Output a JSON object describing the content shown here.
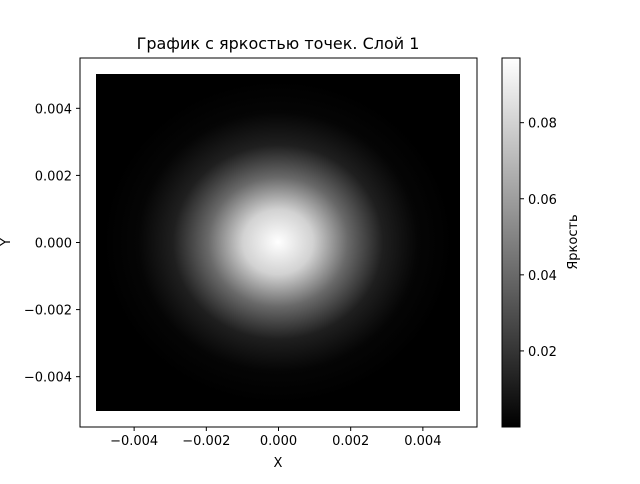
{
  "chart_data": {
    "type": "heatmap",
    "title": "График с яркостью точек. Слой 1",
    "xlabel": "X",
    "ylabel": "Y",
    "xlim": [
      -0.0055,
      0.0055
    ],
    "ylim": [
      -0.0055,
      0.0055
    ],
    "data_extent": {
      "x": [
        -0.005,
        0.005
      ],
      "y": [
        -0.005,
        0.005
      ]
    },
    "xticks": [
      -0.004,
      -0.002,
      0.0,
      0.002,
      0.004
    ],
    "xtick_labels": [
      "−0.004",
      "−0.002",
      "0.000",
      "0.002",
      "0.004"
    ],
    "yticks": [
      -0.004,
      -0.002,
      0.0,
      0.002,
      0.004
    ],
    "ytick_labels": [
      "−0.004",
      "−0.002",
      "0.000",
      "0.002",
      "0.004"
    ],
    "colormap": "gray",
    "colorbar": {
      "label": "Яркость",
      "range": [
        0.0,
        0.097
      ],
      "ticks": [
        0.02,
        0.04,
        0.06,
        0.08
      ],
      "tick_labels": [
        "0.02",
        "0.04",
        "0.06",
        "0.08"
      ]
    },
    "intensity": {
      "center": [
        0.0,
        0.0
      ],
      "peak": 0.097,
      "profile_radius": [
        0.0,
        0.001,
        0.002,
        0.003,
        0.004
      ],
      "profile_value": [
        0.097,
        0.08,
        0.04,
        0.012,
        0.002
      ]
    },
    "grid": false
  }
}
